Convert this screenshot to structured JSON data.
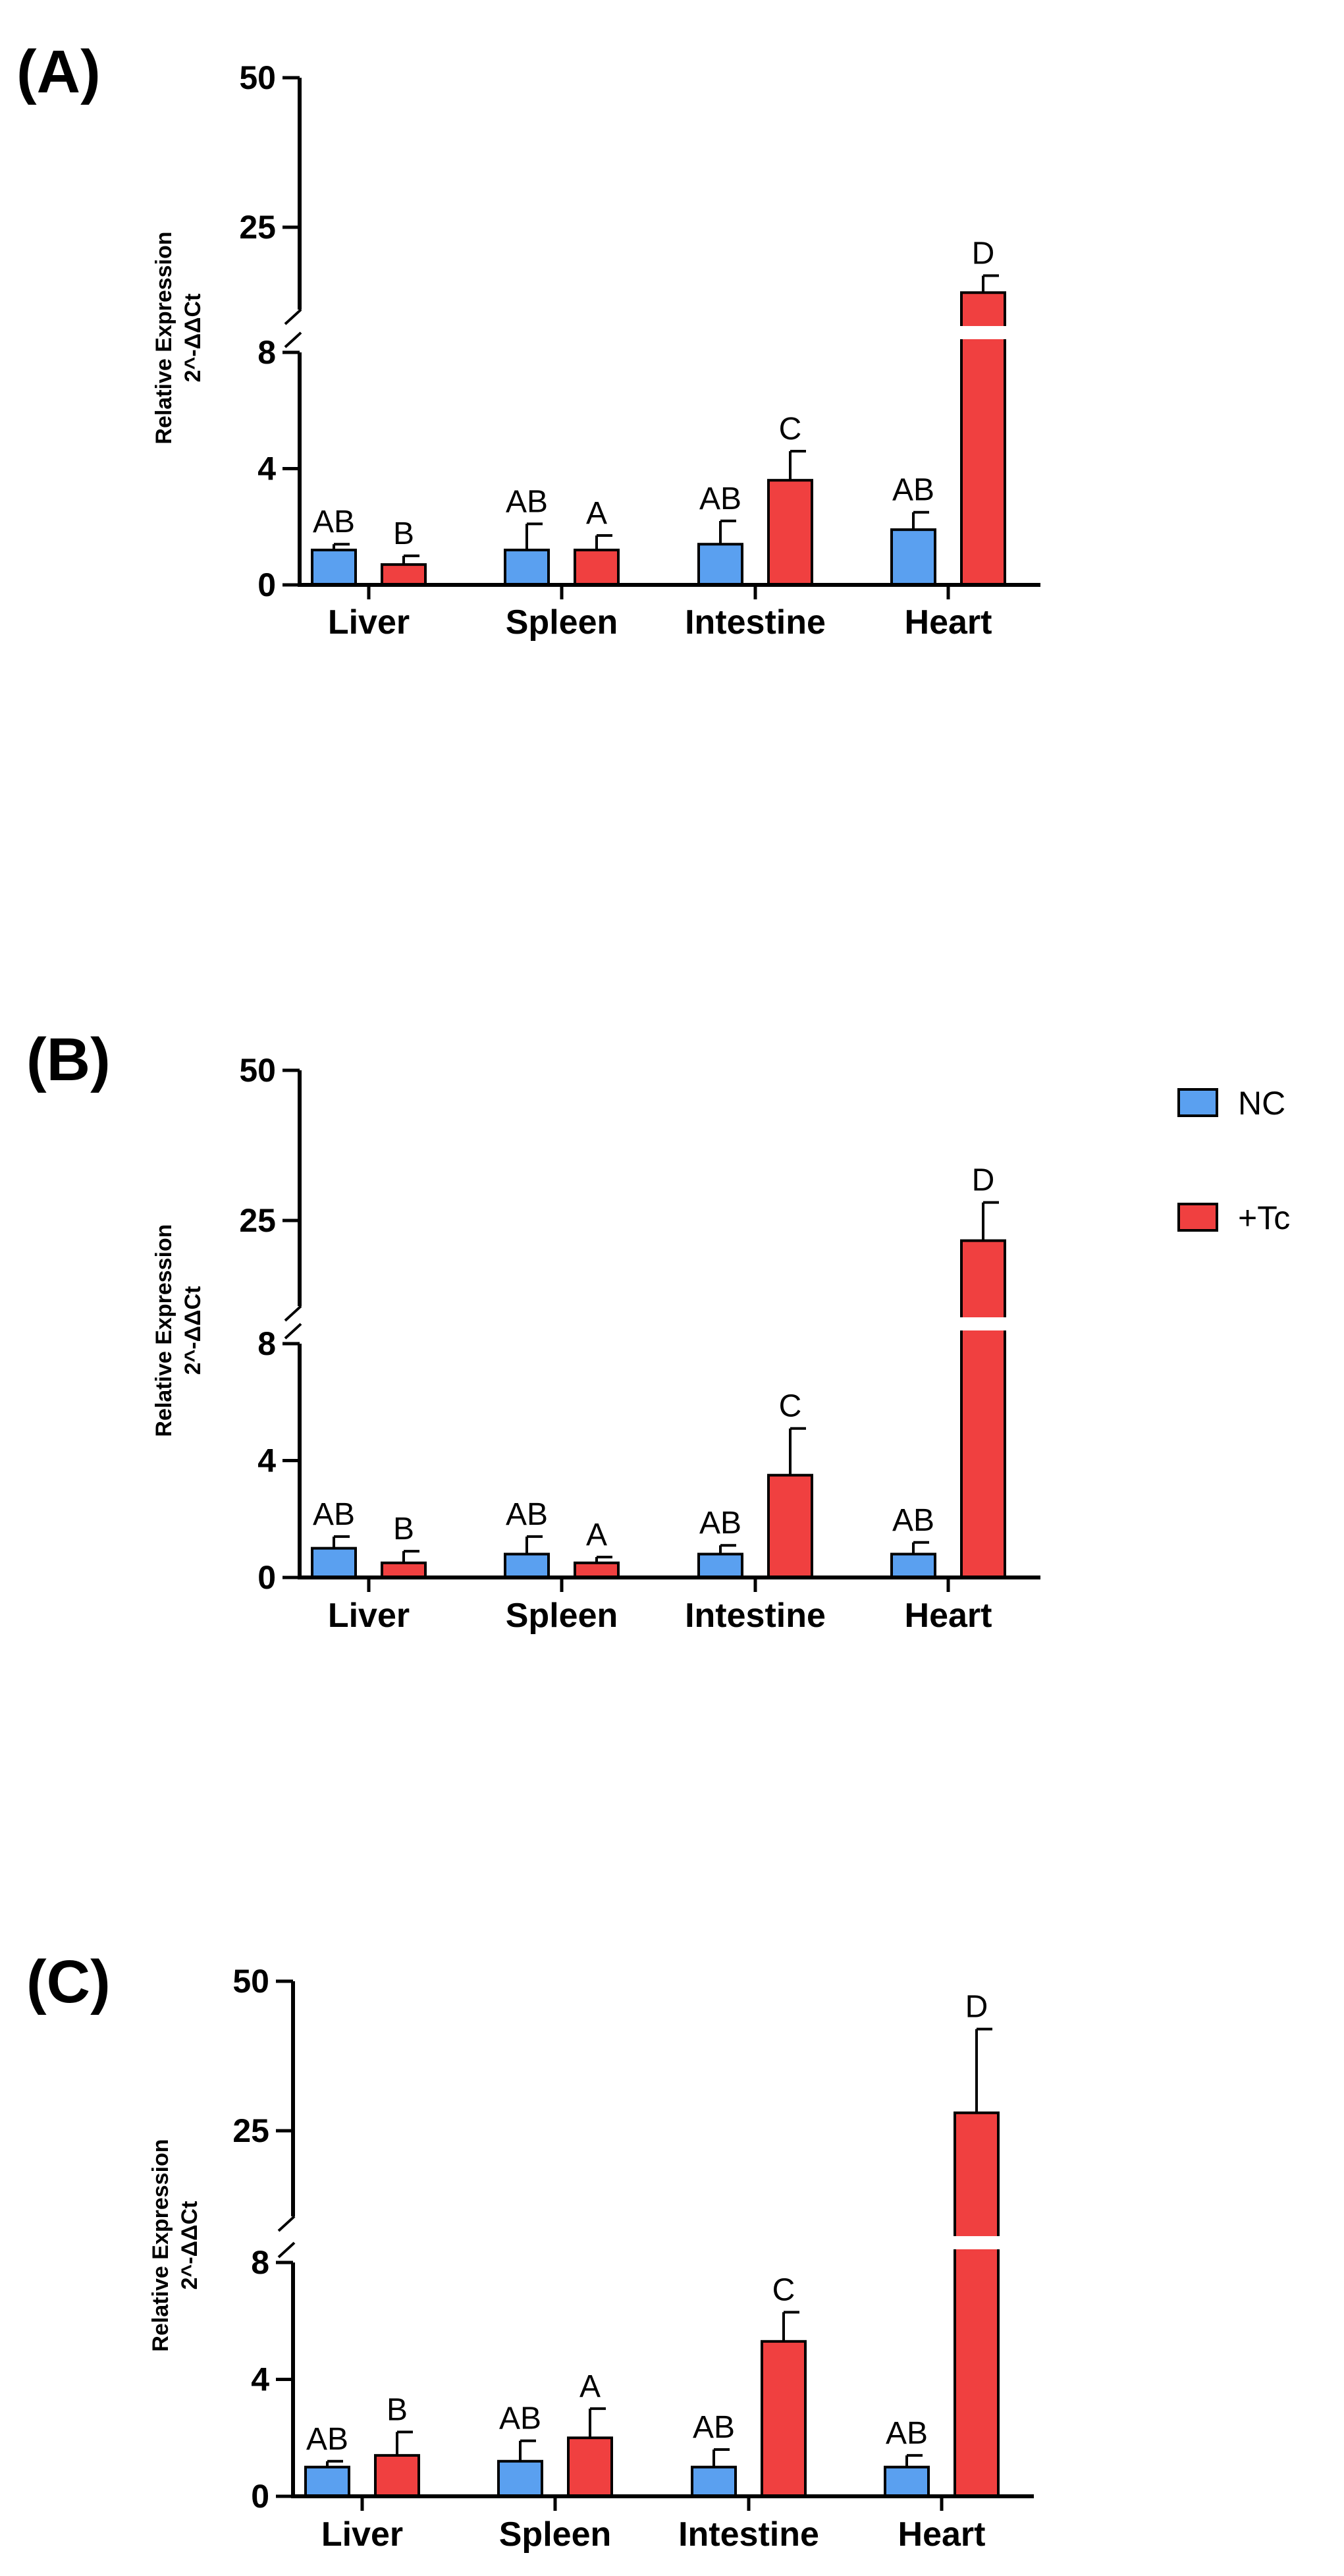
{
  "legend": [
    {
      "label": "NC",
      "color": "#5aa0f0"
    },
    {
      "label": "+Tc",
      "color": "#f04040"
    }
  ],
  "colors": {
    "nc": "#5aa0f0",
    "tc": "#f04040",
    "axis": "#000000"
  },
  "chart_data": [
    {
      "panel": "(A)",
      "type": "bar",
      "ylabel_line1": "Relative Expression",
      "ylabel_line2": "2^-ΔΔCt",
      "categories": [
        "Liver",
        "Spleen",
        "Intestine",
        "Heart"
      ],
      "y_lower_range": [
        0,
        8
      ],
      "y_upper_range": [
        8,
        50
      ],
      "y_ticks": [
        0,
        4,
        8,
        25,
        50
      ],
      "y_tick_labels": [
        "0",
        "4",
        "8",
        "25",
        "50"
      ],
      "series": [
        {
          "name": "NC",
          "values": [
            1.2,
            1.2,
            1.4,
            1.9
          ],
          "errors": [
            0.2,
            0.9,
            0.8,
            0.6
          ],
          "letters": [
            "AB",
            "AB",
            "AB",
            "AB"
          ]
        },
        {
          "name": "+Tc",
          "values": [
            0.7,
            1.2,
            3.6,
            11.5
          ],
          "errors": [
            0.3,
            0.5,
            1.0,
            3.5
          ],
          "letters": [
            "B",
            "A",
            "C",
            "D"
          ]
        }
      ]
    },
    {
      "panel": "(B)",
      "type": "bar",
      "ylabel_line1": "Relative Expression",
      "ylabel_line2": "2^-ΔΔCt",
      "categories": [
        "Liver",
        "Spleen",
        "Intestine",
        "Heart"
      ],
      "y_lower_range": [
        0,
        8
      ],
      "y_upper_range": [
        8,
        50
      ],
      "y_ticks": [
        0,
        4,
        8,
        25,
        50
      ],
      "y_tick_labels": [
        "0",
        "4",
        "8",
        "25",
        "50"
      ],
      "series": [
        {
          "name": "NC",
          "values": [
            1.0,
            0.8,
            0.8,
            0.8
          ],
          "errors": [
            0.4,
            0.6,
            0.3,
            0.4
          ],
          "letters": [
            "AB",
            "AB",
            "AB",
            "AB"
          ]
        },
        {
          "name": "+Tc",
          "values": [
            0.5,
            0.5,
            3.5,
            21.0
          ],
          "errors": [
            0.4,
            0.2,
            1.6,
            7.0
          ],
          "letters": [
            "B",
            "A",
            "C",
            "D"
          ]
        }
      ]
    },
    {
      "panel": "(C)",
      "type": "bar",
      "ylabel_line1": "Relative Expression",
      "ylabel_line2": "2^-ΔΔCt",
      "categories": [
        "Liver",
        "Spleen",
        "Intestine",
        "Heart"
      ],
      "y_lower_range": [
        0,
        8
      ],
      "y_upper_range": [
        8,
        50
      ],
      "y_ticks": [
        0,
        4,
        8,
        25,
        50
      ],
      "y_tick_labels": [
        "0",
        "4",
        "8",
        "25",
        "50"
      ],
      "series": [
        {
          "name": "NC",
          "values": [
            1.0,
            1.2,
            1.0,
            1.0
          ],
          "errors": [
            0.2,
            0.7,
            0.6,
            0.4
          ],
          "letters": [
            "AB",
            "AB",
            "AB",
            "AB"
          ]
        },
        {
          "name": "+Tc",
          "values": [
            1.4,
            2.0,
            5.3,
            28.0
          ],
          "errors": [
            0.8,
            1.0,
            1.0,
            14.0
          ],
          "letters": [
            "B",
            "A",
            "C",
            "D"
          ]
        }
      ]
    }
  ]
}
